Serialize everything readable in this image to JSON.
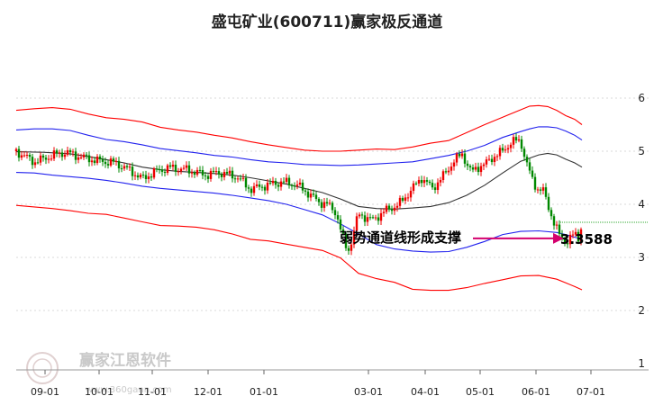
{
  "chart_data": {
    "type": "candlestick",
    "title": "盛屯矿业(600711)赢家极反通道",
    "x_ticks": [
      "09-01",
      "10-01",
      "11-01",
      "12-01",
      "01-01",
      "03-01",
      "04-01",
      "05-01",
      "06-01",
      "07-01"
    ],
    "y_ticks": [
      "1",
      "2",
      "3",
      "4",
      "5",
      "6"
    ],
    "ylim": [
      1,
      6.6
    ],
    "grid": "horizontal dashed",
    "annotation": {
      "text": "弱势通道线形成支撑",
      "value": "3.3588"
    },
    "watermark": {
      "text": "赢家江恩软件",
      "url": "www.360gann.com"
    },
    "series": [
      {
        "name": "",
        "color": "#ff0000",
        "role": "outer upper band",
        "values": [
          [
            0,
            5.77
          ],
          [
            20,
            5.8
          ],
          [
            40,
            5.82
          ],
          [
            60,
            5.79
          ],
          [
            80,
            5.7
          ],
          [
            100,
            5.63
          ],
          [
            120,
            5.6
          ],
          [
            140,
            5.55
          ],
          [
            160,
            5.45
          ],
          [
            180,
            5.4
          ],
          [
            200,
            5.36
          ],
          [
            220,
            5.3
          ],
          [
            240,
            5.25
          ],
          [
            260,
            5.18
          ],
          [
            280,
            5.12
          ],
          [
            300,
            5.07
          ],
          [
            320,
            5.02
          ],
          [
            340,
            5.0
          ],
          [
            360,
            5.0
          ],
          [
            380,
            5.02
          ],
          [
            400,
            5.04
          ],
          [
            420,
            5.03
          ],
          [
            440,
            5.08
          ],
          [
            460,
            5.15
          ],
          [
            480,
            5.2
          ],
          [
            500,
            5.35
          ],
          [
            520,
            5.5
          ],
          [
            540,
            5.64
          ],
          [
            560,
            5.78
          ],
          [
            570,
            5.85
          ],
          [
            580,
            5.86
          ],
          [
            590,
            5.84
          ],
          [
            600,
            5.77
          ],
          [
            610,
            5.67
          ],
          [
            620,
            5.6
          ],
          [
            628,
            5.5
          ]
        ]
      },
      {
        "name": "",
        "color": "#2222ee",
        "role": "inner upper band",
        "values": [
          [
            0,
            5.4
          ],
          [
            20,
            5.42
          ],
          [
            40,
            5.42
          ],
          [
            60,
            5.39
          ],
          [
            80,
            5.3
          ],
          [
            100,
            5.22
          ],
          [
            120,
            5.18
          ],
          [
            140,
            5.12
          ],
          [
            160,
            5.05
          ],
          [
            180,
            5.01
          ],
          [
            200,
            4.97
          ],
          [
            220,
            4.92
          ],
          [
            240,
            4.89
          ],
          [
            260,
            4.84
          ],
          [
            280,
            4.8
          ],
          [
            300,
            4.78
          ],
          [
            320,
            4.75
          ],
          [
            340,
            4.74
          ],
          [
            360,
            4.73
          ],
          [
            380,
            4.74
          ],
          [
            400,
            4.76
          ],
          [
            420,
            4.78
          ],
          [
            440,
            4.8
          ],
          [
            460,
            4.86
          ],
          [
            480,
            4.92
          ],
          [
            500,
            5.0
          ],
          [
            520,
            5.11
          ],
          [
            540,
            5.26
          ],
          [
            560,
            5.37
          ],
          [
            570,
            5.42
          ],
          [
            580,
            5.46
          ],
          [
            590,
            5.46
          ],
          [
            600,
            5.44
          ],
          [
            610,
            5.38
          ],
          [
            620,
            5.3
          ],
          [
            628,
            5.21
          ]
        ]
      },
      {
        "name": "",
        "color": "#333333",
        "role": "middle line",
        "values": [
          [
            0,
            4.99
          ],
          [
            30,
            4.98
          ],
          [
            60,
            4.95
          ],
          [
            80,
            4.9
          ],
          [
            100,
            4.84
          ],
          [
            120,
            4.78
          ],
          [
            140,
            4.7
          ],
          [
            160,
            4.65
          ],
          [
            180,
            4.62
          ],
          [
            200,
            4.6
          ],
          [
            220,
            4.58
          ],
          [
            240,
            4.55
          ],
          [
            260,
            4.5
          ],
          [
            280,
            4.44
          ],
          [
            300,
            4.38
          ],
          [
            320,
            4.3
          ],
          [
            340,
            4.22
          ],
          [
            360,
            4.1
          ],
          [
            380,
            3.96
          ],
          [
            400,
            3.92
          ],
          [
            420,
            3.91
          ],
          [
            440,
            3.93
          ],
          [
            460,
            3.96
          ],
          [
            480,
            4.03
          ],
          [
            500,
            4.17
          ],
          [
            520,
            4.36
          ],
          [
            540,
            4.59
          ],
          [
            560,
            4.81
          ],
          [
            580,
            4.93
          ],
          [
            590,
            4.96
          ],
          [
            600,
            4.93
          ],
          [
            610,
            4.85
          ],
          [
            620,
            4.78
          ],
          [
            628,
            4.7
          ]
        ]
      },
      {
        "name": "",
        "color": "#2222ee",
        "role": "inner lower band",
        "values": [
          [
            0,
            4.6
          ],
          [
            20,
            4.59
          ],
          [
            40,
            4.55
          ],
          [
            60,
            4.52
          ],
          [
            80,
            4.49
          ],
          [
            100,
            4.45
          ],
          [
            120,
            4.4
          ],
          [
            140,
            4.34
          ],
          [
            160,
            4.3
          ],
          [
            180,
            4.27
          ],
          [
            200,
            4.24
          ],
          [
            220,
            4.21
          ],
          [
            240,
            4.17
          ],
          [
            260,
            4.12
          ],
          [
            280,
            4.07
          ],
          [
            300,
            4.0
          ],
          [
            320,
            3.9
          ],
          [
            340,
            3.8
          ],
          [
            360,
            3.63
          ],
          [
            380,
            3.44
          ],
          [
            400,
            3.24
          ],
          [
            420,
            3.16
          ],
          [
            440,
            3.12
          ],
          [
            460,
            3.1
          ],
          [
            480,
            3.11
          ],
          [
            500,
            3.19
          ],
          [
            520,
            3.3
          ],
          [
            540,
            3.43
          ],
          [
            560,
            3.49
          ],
          [
            580,
            3.5
          ],
          [
            600,
            3.47
          ],
          [
            610,
            3.43
          ],
          [
            620,
            3.38
          ],
          [
            628,
            3.35
          ]
        ]
      },
      {
        "name": "",
        "color": "#ff0000",
        "role": "outer lower band",
        "values": [
          [
            0,
            3.98
          ],
          [
            20,
            3.95
          ],
          [
            40,
            3.92
          ],
          [
            60,
            3.88
          ],
          [
            80,
            3.83
          ],
          [
            100,
            3.81
          ],
          [
            120,
            3.74
          ],
          [
            140,
            3.67
          ],
          [
            160,
            3.6
          ],
          [
            180,
            3.59
          ],
          [
            200,
            3.57
          ],
          [
            220,
            3.52
          ],
          [
            240,
            3.44
          ],
          [
            260,
            3.34
          ],
          [
            280,
            3.31
          ],
          [
            300,
            3.25
          ],
          [
            320,
            3.19
          ],
          [
            340,
            3.13
          ],
          [
            360,
            2.99
          ],
          [
            380,
            2.7
          ],
          [
            400,
            2.6
          ],
          [
            420,
            2.53
          ],
          [
            440,
            2.4
          ],
          [
            460,
            2.38
          ],
          [
            480,
            2.38
          ],
          [
            500,
            2.43
          ],
          [
            520,
            2.51
          ],
          [
            540,
            2.58
          ],
          [
            560,
            2.65
          ],
          [
            580,
            2.66
          ],
          [
            600,
            2.59
          ],
          [
            610,
            2.52
          ],
          [
            620,
            2.45
          ],
          [
            628,
            2.39
          ]
        ]
      },
      {
        "name": "",
        "color": "#33aa33",
        "role": "dotted level",
        "level": 3.66
      }
    ],
    "candles_keypoints": [
      [
        0,
        5.0
      ],
      [
        10,
        4.9
      ],
      [
        20,
        4.8
      ],
      [
        30,
        4.85
      ],
      [
        40,
        4.92
      ],
      [
        55,
        4.98
      ],
      [
        70,
        4.9
      ],
      [
        90,
        4.82
      ],
      [
        110,
        4.78
      ],
      [
        125,
        4.65
      ],
      [
        140,
        4.48
      ],
      [
        155,
        4.62
      ],
      [
        170,
        4.69
      ],
      [
        190,
        4.65
      ],
      [
        210,
        4.55
      ],
      [
        225,
        4.6
      ],
      [
        245,
        4.52
      ],
      [
        260,
        4.28
      ],
      [
        275,
        4.35
      ],
      [
        295,
        4.42
      ],
      [
        310,
        4.38
      ],
      [
        325,
        4.2
      ],
      [
        335,
        4.05
      ],
      [
        345,
        4.0
      ],
      [
        355,
        3.85
      ],
      [
        362,
        3.4
      ],
      [
        368,
        3.1
      ],
      [
        372,
        3.3
      ],
      [
        380,
        3.82
      ],
      [
        395,
        3.7
      ],
      [
        410,
        3.88
      ],
      [
        425,
        4.0
      ],
      [
        440,
        4.3
      ],
      [
        450,
        4.5
      ],
      [
        462,
        4.3
      ],
      [
        475,
        4.55
      ],
      [
        485,
        4.8
      ],
      [
        495,
        4.95
      ],
      [
        505,
        4.6
      ],
      [
        512,
        4.7
      ],
      [
        520,
        4.75
      ],
      [
        530,
        4.9
      ],
      [
        540,
        5.0
      ],
      [
        550,
        5.18
      ],
      [
        560,
        5.2
      ],
      [
        565,
        4.85
      ],
      [
        572,
        4.5
      ],
      [
        578,
        4.3
      ],
      [
        585,
        4.25
      ],
      [
        592,
        3.9
      ],
      [
        598,
        3.6
      ],
      [
        605,
        3.35
      ],
      [
        612,
        3.3
      ],
      [
        620,
        3.45
      ],
      [
        624,
        3.38
      ],
      [
        628,
        3.62
      ]
    ]
  }
}
